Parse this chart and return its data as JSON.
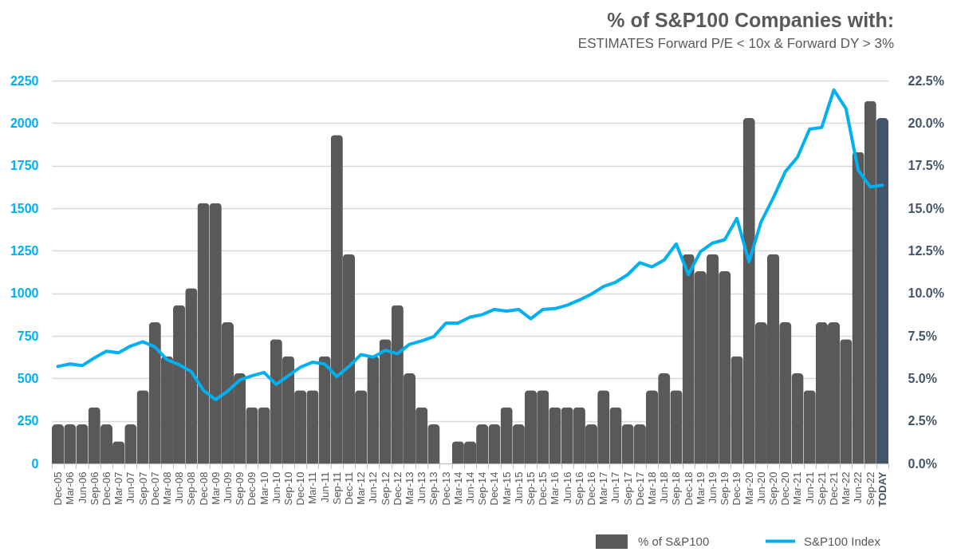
{
  "chart_data": {
    "type": "bar",
    "title": "% of S&P100 Companies with:",
    "subtitle": "ESTIMATES Forward P/E < 10x & Forward DY > 3%",
    "categories": [
      "Dec-05",
      "Mar-06",
      "Jun-06",
      "Sep-06",
      "Dec-06",
      "Mar-07",
      "Jun-07",
      "Sep-07",
      "Dec-07",
      "Mar-08",
      "Jun-08",
      "Sep-08",
      "Dec-08",
      "Mar-09",
      "Jun-09",
      "Sep-09",
      "Dec-09",
      "Mar-10",
      "Jun-10",
      "Sep-10",
      "Dec-10",
      "Mar-11",
      "Jun-11",
      "Sep-11",
      "Dec-11",
      "Mar-12",
      "Jun-12",
      "Sep-12",
      "Dec-12",
      "Mar-13",
      "Jun-13",
      "Sep-13",
      "Dec-13",
      "Mar-14",
      "Jun-14",
      "Sep-14",
      "Dec-14",
      "Mar-15",
      "Jun-15",
      "Sep-15",
      "Dec-15",
      "Mar-16",
      "Jun-16",
      "Sep-16",
      "Dec-16",
      "Mar-17",
      "Jun-17",
      "Sep-17",
      "Dec-17",
      "Mar-18",
      "Jun-18",
      "Sep-18",
      "Dec-18",
      "Mar-19",
      "Jun-19",
      "Sep-19",
      "Dec-19",
      "Mar-20",
      "Jun-20",
      "Sep-20",
      "Dec-20",
      "Mar-21",
      "Jun-21",
      "Sep-21",
      "Dec-21",
      "Mar-22",
      "Jun-22",
      "Sep-22",
      "TODAY"
    ],
    "series": [
      {
        "name": "% of S&P100",
        "axis": "y2",
        "color": "#595959",
        "colors": [
          "#595959",
          "#595959",
          "#595959",
          "#595959",
          "#595959",
          "#595959",
          "#595959",
          "#595959",
          "#595959",
          "#595959",
          "#595959",
          "#595959",
          "#595959",
          "#595959",
          "#595959",
          "#595959",
          "#595959",
          "#595959",
          "#595959",
          "#595959",
          "#595959",
          "#595959",
          "#595959",
          "#595959",
          "#595959",
          "#595959",
          "#595959",
          "#595959",
          "#595959",
          "#595959",
          "#595959",
          "#595959",
          "#595959",
          "#595959",
          "#595959",
          "#595959",
          "#595959",
          "#595959",
          "#595959",
          "#595959",
          "#595959",
          "#595959",
          "#595959",
          "#595959",
          "#595959",
          "#595959",
          "#595959",
          "#595959",
          "#595959",
          "#595959",
          "#595959",
          "#595959",
          "#595959",
          "#595959",
          "#595959",
          "#595959",
          "#595959",
          "#595959",
          "#595959",
          "#595959",
          "#595959",
          "#595959",
          "#595959",
          "#595959",
          "#595959",
          "#595959",
          "#595959",
          "#595959",
          "#44546a"
        ],
        "values": [
          2.3,
          2.3,
          2.3,
          3.3,
          2.3,
          1.3,
          2.3,
          4.3,
          8.3,
          6.3,
          9.3,
          10.3,
          15.3,
          15.3,
          8.3,
          5.3,
          3.3,
          3.3,
          7.3,
          6.3,
          4.3,
          4.3,
          6.3,
          19.3,
          12.3,
          4.3,
          6.3,
          7.3,
          9.3,
          5.3,
          3.3,
          2.3,
          0,
          1.3,
          1.3,
          2.3,
          2.3,
          3.3,
          2.3,
          4.3,
          4.3,
          3.3,
          3.3,
          3.3,
          2.3,
          4.3,
          3.3,
          2.3,
          2.3,
          4.3,
          5.3,
          4.3,
          12.3,
          11.3,
          12.3,
          11.3,
          6.3,
          20.3,
          8.3,
          12.3,
          8.3,
          5.3,
          4.3,
          8.3,
          8.3,
          7.3,
          18.3,
          21.3,
          20.3
        ]
      },
      {
        "name": "S&P100 Index",
        "type": "line",
        "color": "#00b0f0",
        "values": [
          570,
          585,
          575,
          620,
          660,
          650,
          690,
          715,
          685,
          610,
          580,
          540,
          430,
          375,
          425,
          490,
          515,
          535,
          465,
          515,
          565,
          595,
          585,
          510,
          570,
          640,
          625,
          665,
          645,
          700,
          720,
          745,
          825,
          825,
          860,
          875,
          905,
          895,
          905,
          850,
          905,
          910,
          930,
          960,
          995,
          1040,
          1065,
          1110,
          1180,
          1155,
          1195,
          1290,
          1110,
          1245,
          1295,
          1315,
          1440,
          1185,
          1420,
          1560,
          1715,
          1800,
          1965,
          1975,
          2195,
          2085,
          1725,
          1625,
          1635
        ]
      }
    ],
    "ylim": [
      0,
      2250
    ],
    "yticks": [
      0,
      250,
      500,
      750,
      1000,
      1250,
      1500,
      1750,
      2000,
      2250
    ],
    "y2lim": [
      0,
      22.5
    ],
    "y2ticks": [
      {
        "value": 0,
        "label": "0.0%"
      },
      {
        "value": 2.5,
        "label": "2.5%"
      },
      {
        "value": 5,
        "label": "5.0%"
      },
      {
        "value": 7.5,
        "label": "7.5%"
      },
      {
        "value": 10,
        "label": "10.0%"
      },
      {
        "value": 12.5,
        "label": "12.5%"
      },
      {
        "value": 15,
        "label": "15.0%"
      },
      {
        "value": 17.5,
        "label": "17.5%"
      },
      {
        "value": 20,
        "label": "20.0%"
      },
      {
        "value": 22.5,
        "label": "22.5%"
      }
    ],
    "grid": "y",
    "legend": "bottom right"
  }
}
